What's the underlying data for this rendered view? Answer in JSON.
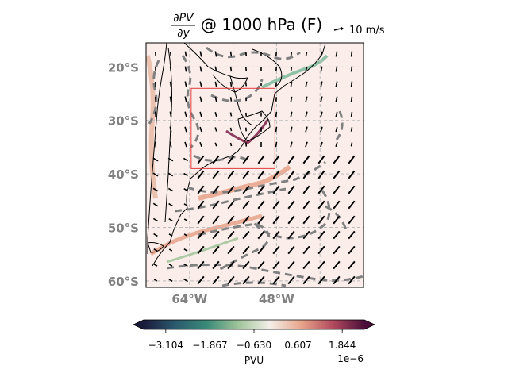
{
  "title": {
    "fraction_numerator": "∂PV",
    "fraction_denominator": "∂y",
    "suffix": "@ 1000 hPa (F)"
  },
  "quiver_key": {
    "label": "10 m/s"
  },
  "map": {
    "lat_ticks": [
      "20°S",
      "30°S",
      "40°S",
      "50°S",
      "60°S"
    ],
    "lon_ticks": [
      "64°W",
      "48°W"
    ],
    "lat_tick_values": [
      -20,
      -30,
      -40,
      -50,
      -60
    ],
    "lon_tick_values": [
      -64,
      -48
    ],
    "lon_range": [
      -72,
      -32
    ],
    "lat_range": [
      -61.2,
      -15.5
    ],
    "grid": true,
    "tick_color": "#808080",
    "frame_color": "#000000",
    "background_color": "#fbeeea",
    "box_color": "#e03a3a",
    "box_bounds": {
      "lon": [
        -63.7,
        -48.3
      ],
      "lat": [
        -39,
        -24
      ]
    },
    "contour_color": "#808080",
    "vector_color": "#000000"
  },
  "colorbar": {
    "ticks": [
      "−3.104",
      "−1.867",
      "−0.630",
      "0.607",
      "1.844"
    ],
    "tick_values": [
      -3.104,
      -1.867,
      -0.63,
      0.607,
      1.844
    ],
    "range": [
      -3.723,
      2.463
    ],
    "label": "PVU",
    "offset_label": "1e−6",
    "extend": "both",
    "colormap_stops": [
      "#1a1a3a",
      "#2b5a6e",
      "#3a8a78",
      "#9fc49a",
      "#f3efe9",
      "#e8a48a",
      "#b34a5e",
      "#4a0f3a"
    ]
  }
}
